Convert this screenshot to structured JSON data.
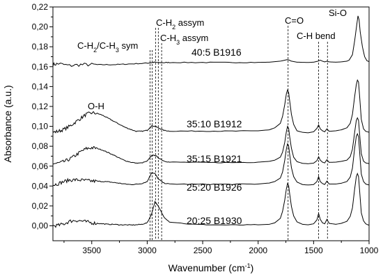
{
  "chart_data": {
    "type": "line",
    "xlabel": "Wavenumber (cm-1)",
    "ylabel": "Absorbance (a.u.)",
    "xlim": [
      3850,
      1000
    ],
    "x_reversed": true,
    "ylim": [
      -0.015,
      0.22
    ],
    "x_ticks": [
      3500,
      3000,
      2500,
      2000,
      1500,
      1000
    ],
    "x_tick_labels": [
      "3500",
      "3000",
      "2500",
      "2000",
      "1500",
      "1000"
    ],
    "y_ticks": [
      0.0,
      0.02,
      0.04,
      0.06,
      0.08,
      0.1,
      0.12,
      0.14,
      0.16,
      0.18,
      0.2,
      0.22
    ],
    "y_tick_labels": [
      "0,00",
      "0,02",
      "0,04",
      "0,06",
      "0,08",
      "0,10",
      "0,12",
      "0,14",
      "0,16",
      "0,18",
      "0,20",
      "0,22"
    ],
    "series": [
      {
        "name": "40:5 B1916",
        "x": [
          3850,
          3800,
          3700,
          3600,
          3500,
          3400,
          3300,
          3200,
          3100,
          3000,
          2960,
          2930,
          2900,
          2850,
          2800,
          2600,
          2400,
          2200,
          2000,
          1900,
          1800,
          1760,
          1740,
          1725,
          1700,
          1650,
          1550,
          1500,
          1460,
          1440,
          1420,
          1400,
          1380,
          1360,
          1300,
          1250,
          1200,
          1180,
          1150,
          1130,
          1110,
          1100,
          1090,
          1080,
          1060,
          1040,
          1020,
          1000
        ],
        "y": [
          0.162,
          0.163,
          0.161,
          0.162,
          0.162,
          0.162,
          0.162,
          0.1625,
          0.163,
          0.1635,
          0.164,
          0.1645,
          0.164,
          0.164,
          0.1642,
          0.1642,
          0.1642,
          0.1642,
          0.1643,
          0.1645,
          0.1655,
          0.1665,
          0.167,
          0.1668,
          0.1655,
          0.1645,
          0.1642,
          0.1645,
          0.1655,
          0.1665,
          0.1655,
          0.1648,
          0.1655,
          0.1648,
          0.1645,
          0.1648,
          0.1655,
          0.1665,
          0.172,
          0.186,
          0.203,
          0.211,
          0.207,
          0.195,
          0.18,
          0.17,
          0.166,
          0.165
        ]
      },
      {
        "name": "35:10 B1912",
        "x": [
          3850,
          3800,
          3750,
          3700,
          3650,
          3600,
          3550,
          3500,
          3450,
          3400,
          3350,
          3300,
          3250,
          3200,
          3150,
          3100,
          3050,
          3000,
          2960,
          2930,
          2900,
          2850,
          2800,
          2600,
          2400,
          2200,
          2000,
          1900,
          1850,
          1800,
          1780,
          1760,
          1745,
          1735,
          1725,
          1715,
          1700,
          1680,
          1650,
          1600,
          1550,
          1500,
          1470,
          1455,
          1440,
          1420,
          1400,
          1380,
          1360,
          1300,
          1250,
          1200,
          1170,
          1150,
          1130,
          1115,
          1105,
          1095,
          1085,
          1070,
          1050,
          1030,
          1000
        ],
        "y": [
          0.094,
          0.095,
          0.097,
          0.1,
          0.104,
          0.108,
          0.112,
          0.1135,
          0.113,
          0.111,
          0.108,
          0.105,
          0.102,
          0.099,
          0.097,
          0.095,
          0.095,
          0.096,
          0.1005,
          0.1,
          0.0985,
          0.096,
          0.0952,
          0.0952,
          0.0952,
          0.0952,
          0.0955,
          0.0965,
          0.0985,
          0.103,
          0.11,
          0.122,
          0.133,
          0.1365,
          0.134,
          0.125,
          0.112,
          0.102,
          0.0955,
          0.094,
          0.0935,
          0.0945,
          0.098,
          0.1015,
          0.0975,
          0.0955,
          0.0945,
          0.0975,
          0.095,
          0.0955,
          0.0965,
          0.0985,
          0.103,
          0.112,
          0.13,
          0.142,
          0.1465,
          0.1445,
          0.13,
          0.107,
          0.0975,
          0.095,
          0.094
        ]
      },
      {
        "name": "35:15 B1921",
        "x": [
          3850,
          3800,
          3750,
          3700,
          3650,
          3600,
          3550,
          3500,
          3450,
          3400,
          3350,
          3300,
          3250,
          3200,
          3150,
          3100,
          3050,
          3000,
          2960,
          2930,
          2900,
          2850,
          2800,
          2600,
          2400,
          2200,
          2000,
          1900,
          1850,
          1800,
          1780,
          1760,
          1745,
          1735,
          1725,
          1715,
          1700,
          1680,
          1650,
          1600,
          1550,
          1500,
          1470,
          1455,
          1440,
          1420,
          1400,
          1380,
          1360,
          1300,
          1250,
          1200,
          1170,
          1150,
          1130,
          1115,
          1105,
          1095,
          1085,
          1070,
          1050,
          1030,
          1000
        ],
        "y": [
          0.0625,
          0.063,
          0.0645,
          0.067,
          0.0705,
          0.0745,
          0.0775,
          0.0785,
          0.0778,
          0.076,
          0.0735,
          0.071,
          0.068,
          0.0655,
          0.064,
          0.063,
          0.0632,
          0.065,
          0.0705,
          0.071,
          0.0685,
          0.0652,
          0.064,
          0.0638,
          0.0636,
          0.0636,
          0.064,
          0.0648,
          0.066,
          0.069,
          0.074,
          0.084,
          0.095,
          0.1,
          0.098,
          0.089,
          0.078,
          0.069,
          0.0645,
          0.0628,
          0.0624,
          0.063,
          0.0655,
          0.0695,
          0.066,
          0.064,
          0.0632,
          0.0665,
          0.0638,
          0.064,
          0.0648,
          0.066,
          0.0695,
          0.077,
          0.094,
          0.106,
          0.1085,
          0.106,
          0.092,
          0.0725,
          0.065,
          0.0632,
          0.0625
        ]
      },
      {
        "name": "25:20 B1926",
        "x": [
          3850,
          3800,
          3750,
          3700,
          3650,
          3600,
          3550,
          3500,
          3450,
          3400,
          3350,
          3300,
          3250,
          3200,
          3150,
          3100,
          3050,
          3000,
          2960,
          2930,
          2900,
          2850,
          2800,
          2600,
          2400,
          2200,
          2000,
          1900,
          1850,
          1800,
          1780,
          1760,
          1745,
          1735,
          1725,
          1715,
          1700,
          1680,
          1650,
          1600,
          1550,
          1500,
          1470,
          1455,
          1440,
          1420,
          1400,
          1380,
          1360,
          1300,
          1250,
          1200,
          1170,
          1150,
          1130,
          1115,
          1105,
          1095,
          1085,
          1070,
          1050,
          1030,
          1000
        ],
        "y": [
          0.041,
          0.0425,
          0.0445,
          0.046,
          0.0462,
          0.046,
          0.0455,
          0.045,
          0.0448,
          0.0445,
          0.0442,
          0.0435,
          0.0428,
          0.042,
          0.0415,
          0.0418,
          0.0425,
          0.0445,
          0.0535,
          0.0525,
          0.047,
          0.043,
          0.042,
          0.0418,
          0.0418,
          0.0418,
          0.042,
          0.043,
          0.0445,
          0.048,
          0.054,
          0.066,
          0.0775,
          0.0825,
          0.0805,
          0.071,
          0.0585,
          0.0495,
          0.044,
          0.0415,
          0.041,
          0.0415,
          0.0445,
          0.0495,
          0.0445,
          0.0425,
          0.0415,
          0.045,
          0.042,
          0.042,
          0.0428,
          0.0445,
          0.049,
          0.058,
          0.078,
          0.09,
          0.0925,
          0.0895,
          0.074,
          0.052,
          0.0445,
          0.042,
          0.041
        ]
      },
      {
        "name": "20:25 B1930",
        "x": [
          3850,
          3800,
          3750,
          3700,
          3650,
          3600,
          3550,
          3500,
          3450,
          3400,
          3350,
          3300,
          3250,
          3200,
          3150,
          3100,
          3050,
          3000,
          2960,
          2930,
          2900,
          2850,
          2800,
          2600,
          2400,
          2200,
          2000,
          1900,
          1850,
          1800,
          1780,
          1760,
          1745,
          1735,
          1725,
          1715,
          1700,
          1680,
          1650,
          1600,
          1550,
          1500,
          1470,
          1455,
          1440,
          1420,
          1400,
          1380,
          1360,
          1300,
          1250,
          1200,
          1170,
          1150,
          1130,
          1115,
          1105,
          1095,
          1085,
          1070,
          1050,
          1030,
          1000
        ],
        "y": [
          0.0,
          0.0005,
          0.002,
          0.0045,
          0.0055,
          0.005,
          0.004,
          0.003,
          0.0025,
          0.002,
          0.0015,
          0.0015,
          0.001,
          0.001,
          0.0008,
          0.001,
          0.0015,
          0.003,
          0.012,
          0.0245,
          0.0195,
          0.009,
          0.004,
          0.0015,
          0.001,
          0.0008,
          0.001,
          0.0015,
          0.003,
          0.0075,
          0.0145,
          0.026,
          0.0375,
          0.0425,
          0.0405,
          0.0315,
          0.0195,
          0.01,
          0.004,
          0.0015,
          0.001,
          0.002,
          0.006,
          0.0125,
          0.0065,
          0.003,
          0.002,
          0.0065,
          0.0025,
          0.0015,
          0.0025,
          0.0045,
          0.0095,
          0.018,
          0.037,
          0.0495,
          0.0525,
          0.0495,
          0.035,
          0.013,
          0.005,
          0.002,
          0.0005
        ]
      }
    ],
    "annotations": [
      {
        "label": "O-H"
      },
      {
        "label": "C-H2/C-H3 sym",
        "line_x": [
          2975,
          2955
        ]
      },
      {
        "label": "C-H2 assym",
        "line_x": [
          2925,
          2900
        ]
      },
      {
        "label": "C-H3 assym",
        "line_x": [
          2870
        ]
      },
      {
        "label": "C=O",
        "line_x": [
          1730
        ]
      },
      {
        "label": "C-H bend",
        "line_x": [
          1455,
          1375
        ]
      },
      {
        "label": "Si-O"
      }
    ]
  }
}
